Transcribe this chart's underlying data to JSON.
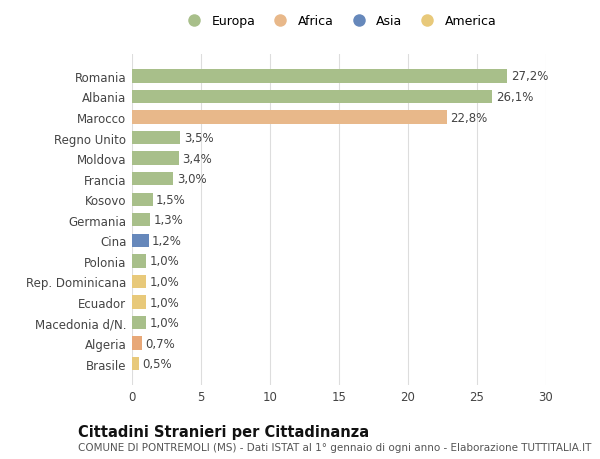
{
  "categories": [
    "Brasile",
    "Algeria",
    "Macedonia d/N.",
    "Ecuador",
    "Rep. Dominicana",
    "Polonia",
    "Cina",
    "Germania",
    "Kosovo",
    "Francia",
    "Moldova",
    "Regno Unito",
    "Marocco",
    "Albania",
    "Romania"
  ],
  "values": [
    0.5,
    0.7,
    1.0,
    1.0,
    1.0,
    1.0,
    1.2,
    1.3,
    1.5,
    3.0,
    3.4,
    3.5,
    22.8,
    26.1,
    27.2
  ],
  "colors": [
    "#e8c97a",
    "#e8a878",
    "#a8bf8a",
    "#e8c97a",
    "#e8c97a",
    "#a8bf8a",
    "#6688bb",
    "#a8bf8a",
    "#a8bf8a",
    "#a8bf8a",
    "#a8bf8a",
    "#a8bf8a",
    "#e8b88a",
    "#a8bf8a",
    "#a8bf8a"
  ],
  "labels": [
    "0,5%",
    "0,7%",
    "1,0%",
    "1,0%",
    "1,0%",
    "1,0%",
    "1,2%",
    "1,3%",
    "1,5%",
    "3,0%",
    "3,4%",
    "3,5%",
    "22,8%",
    "26,1%",
    "27,2%"
  ],
  "legend_labels": [
    "Europa",
    "Africa",
    "Asia",
    "America"
  ],
  "legend_colors": [
    "#a8bf8a",
    "#e8b88a",
    "#6688bb",
    "#e8c97a"
  ],
  "title": "Cittadini Stranieri per Cittadinanza",
  "subtitle": "COMUNE DI PONTREMOLI (MS) - Dati ISTAT al 1° gennaio di ogni anno - Elaborazione TUTTITALIA.IT",
  "xlim": [
    0,
    30
  ],
  "xticks": [
    0,
    5,
    10,
    15,
    20,
    25,
    30
  ],
  "background_color": "#ffffff",
  "plot_background": "#ffffff",
  "grid_color": "#dddddd",
  "bar_height": 0.65,
  "label_fontsize": 8.5,
  "tick_fontsize": 8.5,
  "title_fontsize": 10.5,
  "subtitle_fontsize": 7.5
}
